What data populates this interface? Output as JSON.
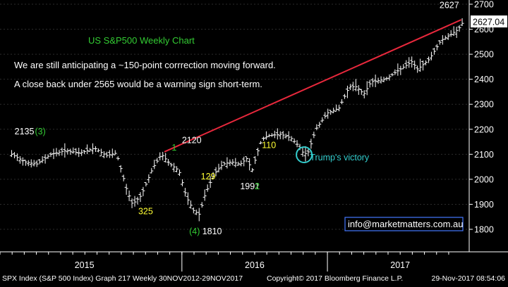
{
  "chart_data": {
    "type": "ohlc",
    "title": "US S&P500 Weekly Chart",
    "commentary": [
      "We are still anticipating a ~150-point corrrection moving forward.",
      "A close back under 2565 would be a warning sign short-term."
    ],
    "x_range": [
      "2014-10",
      "2017-11"
    ],
    "year_labels": [
      {
        "label": "2015",
        "x": 2015.33
      },
      {
        "label": "2016",
        "x": 2016.5
      },
      {
        "label": "2017",
        "x": 2017.5
      }
    ],
    "year_boundaries": [
      2016.0,
      2017.0
    ],
    "ylim": [
      1750,
      2700
    ],
    "yticks": [
      1800,
      1900,
      2000,
      2100,
      2200,
      2300,
      2400,
      2500,
      2600,
      2700
    ],
    "last_value_label": "2627.04",
    "trendline": {
      "from": {
        "x": 2015.88,
        "y": 2110
      },
      "to": {
        "x": 2017.92,
        "y": 2638
      }
    },
    "key_points": [
      {
        "x": 2014.83,
        "y": 2100
      },
      {
        "x": 2014.92,
        "y": 2070
      },
      {
        "x": 2015.0,
        "y": 2060
      },
      {
        "x": 2015.1,
        "y": 2100
      },
      {
        "x": 2015.2,
        "y": 2115
      },
      {
        "x": 2015.3,
        "y": 2105
      },
      {
        "x": 2015.4,
        "y": 2125
      },
      {
        "x": 2015.48,
        "y": 2095
      },
      {
        "x": 2015.55,
        "y": 2105
      },
      {
        "x": 2015.62,
        "y": 1960
      },
      {
        "x": 2015.66,
        "y": 1900
      },
      {
        "x": 2015.72,
        "y": 1935
      },
      {
        "x": 2015.8,
        "y": 2045
      },
      {
        "x": 2015.86,
        "y": 2100
      },
      {
        "x": 2015.92,
        "y": 2060
      },
      {
        "x": 2015.98,
        "y": 2035
      },
      {
        "x": 2016.03,
        "y": 1930
      },
      {
        "x": 2016.08,
        "y": 1875
      },
      {
        "x": 2016.12,
        "y": 1860
      },
      {
        "x": 2016.16,
        "y": 1940
      },
      {
        "x": 2016.22,
        "y": 2020
      },
      {
        "x": 2016.28,
        "y": 2060
      },
      {
        "x": 2016.34,
        "y": 2070
      },
      {
        "x": 2016.4,
        "y": 2060
      },
      {
        "x": 2016.45,
        "y": 2085
      },
      {
        "x": 2016.48,
        "y": 2030
      },
      {
        "x": 2016.52,
        "y": 2110
      },
      {
        "x": 2016.55,
        "y": 2160
      },
      {
        "x": 2016.6,
        "y": 2175
      },
      {
        "x": 2016.68,
        "y": 2180
      },
      {
        "x": 2016.75,
        "y": 2165
      },
      {
        "x": 2016.8,
        "y": 2135
      },
      {
        "x": 2016.84,
        "y": 2100
      },
      {
        "x": 2016.87,
        "y": 2110
      },
      {
        "x": 2016.92,
        "y": 2200
      },
      {
        "x": 2017.0,
        "y": 2265
      },
      {
        "x": 2017.08,
        "y": 2285
      },
      {
        "x": 2017.15,
        "y": 2370
      },
      {
        "x": 2017.2,
        "y": 2370
      },
      {
        "x": 2017.25,
        "y": 2340
      },
      {
        "x": 2017.3,
        "y": 2390
      },
      {
        "x": 2017.4,
        "y": 2400
      },
      {
        "x": 2017.5,
        "y": 2440
      },
      {
        "x": 2017.58,
        "y": 2470
      },
      {
        "x": 2017.62,
        "y": 2440
      },
      {
        "x": 2017.7,
        "y": 2480
      },
      {
        "x": 2017.78,
        "y": 2555
      },
      {
        "x": 2017.85,
        "y": 2580
      },
      {
        "x": 2017.9,
        "y": 2600
      },
      {
        "x": 2017.93,
        "y": 2627
      }
    ],
    "annotations": [
      {
        "text": "2135",
        "x": 2014.85,
        "y": 2180,
        "color": "#ffffff"
      },
      {
        "text": "(3)",
        "x": 2014.99,
        "y": 2180,
        "color": "#33cc33"
      },
      {
        "text": "325",
        "x": 2015.7,
        "y": 1860,
        "color": "#ffff33"
      },
      {
        "text": "(4)",
        "x": 2016.05,
        "y": 1780,
        "color": "#33cc33"
      },
      {
        "text": "1810",
        "x": 2016.14,
        "y": 1780,
        "color": "#ffffff"
      },
      {
        "text": "2120",
        "x": 2016.0,
        "y": 2145,
        "color": "#ffffff"
      },
      {
        "text": "1",
        "x": 2015.93,
        "y": 2115,
        "color": "#33cc33"
      },
      {
        "text": "129",
        "x": 2016.13,
        "y": 2000,
        "color": "#ffff33"
      },
      {
        "text": "1991",
        "x": 2016.4,
        "y": 1960,
        "color": "#ffffff"
      },
      {
        "text": "2",
        "x": 2016.5,
        "y": 1960,
        "color": "#33cc33"
      },
      {
        "text": "110",
        "x": 2016.55,
        "y": 2125,
        "color": "#ffff33"
      },
      {
        "text": "Trump's victory",
        "x": 2016.88,
        "y": 2075,
        "color": "#33cccc"
      },
      {
        "text": "2627",
        "x": 2017.77,
        "y": 2685,
        "color": "#ffffff"
      }
    ],
    "circle_marker": {
      "x": 2016.84,
      "y": 2098
    }
  },
  "info_box": "info@marketmatters.com.au",
  "footer": {
    "left": "SPX Index (S&P 500 Index) Graph 217  Weekly 30NOV2012-29NOV2017",
    "middle": "Copyright© 2017 Bloomberg Finance L.P.",
    "right": "29-Nov-2017 08:54:06"
  },
  "colors": {
    "background": "#000000",
    "bars": "#ffffff",
    "trendline": "#e8283c",
    "title": "#33cc33",
    "info_box_border": "#4477ff"
  }
}
